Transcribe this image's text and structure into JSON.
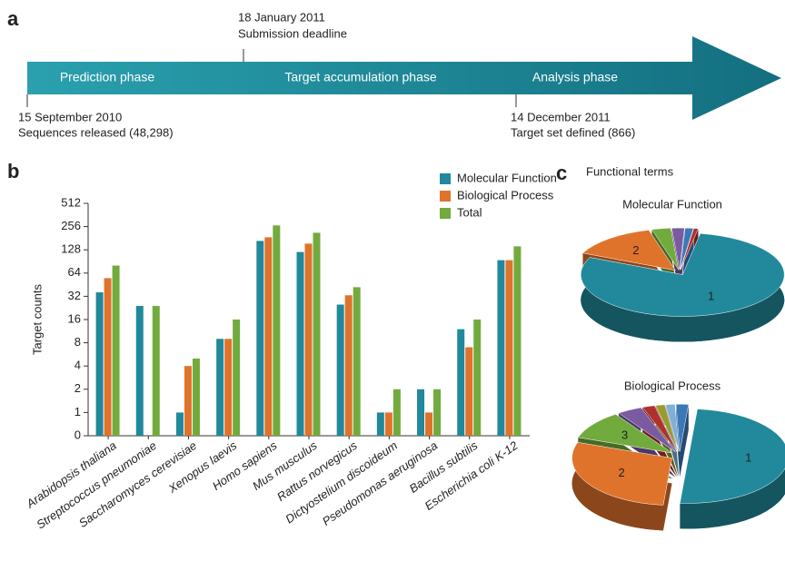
{
  "panel_labels": [
    "a",
    "b",
    "c"
  ],
  "timeline": {
    "phases": [
      "Prediction phase",
      "Target accumulation phase",
      "Analysis phase"
    ],
    "events": [
      {
        "date": "15 September 2010",
        "text": "Sequences released (48,298)"
      },
      {
        "date": "18 January 2011",
        "text": "Submission deadline"
      },
      {
        "date": "14 December 2011",
        "text": "Target set defined (866)"
      }
    ]
  },
  "chart_data": [
    {
      "type": "bar",
      "y_label": "Target counts",
      "categories": [
        "Arabidopsis thaliana",
        "Streptococcus pneumoniae",
        "Saccharomyces cerevisiae",
        "Xenopus laevis",
        "Homo sapiens",
        "Mus musculus",
        "Rattus norvegicus",
        "Dictyostelium discoideum",
        "Pseudomonas aeruginosa",
        "Bacillus subtilis",
        "Escherichia coli K-12"
      ],
      "series": [
        {
          "name": "Molecular Function",
          "color": "#21899b",
          "values": [
            36,
            24,
            1,
            9,
            167,
            120,
            25,
            1,
            2,
            12,
            94
          ]
        },
        {
          "name": "Biological Process",
          "color": "#e0732c",
          "values": [
            55,
            null,
            4,
            9,
            186,
            154,
            33,
            1,
            1,
            7,
            94
          ]
        },
        {
          "name": "Total",
          "color": "#72ab3d",
          "values": [
            80,
            24,
            5,
            16,
            265,
            213,
            42,
            2,
            2,
            16,
            142
          ]
        }
      ],
      "log_scale": true,
      "log_base": 2,
      "ylim": [
        0,
        512
      ],
      "yticks": [
        0,
        1,
        2,
        4,
        8,
        16,
        32,
        64,
        128,
        256,
        512
      ]
    },
    {
      "type": "pie",
      "title": "Functional terms",
      "subtitle": "Molecular Function",
      "values": [
        79,
        14,
        3,
        2,
        1.3,
        0.7
      ],
      "labels": [
        "1",
        "2",
        null,
        null,
        null,
        null
      ],
      "colors": [
        "#21899b",
        "#e0732c",
        "#72ab3d",
        "#7a5aa0",
        "#3b78b8",
        "#b03030"
      ]
    },
    {
      "type": "pie",
      "subtitle": "Biological Process",
      "values": [
        50,
        29,
        10,
        4,
        2,
        1.5,
        1.5,
        2
      ],
      "labels": [
        "1",
        "2",
        "3",
        null,
        null,
        null,
        null,
        null
      ],
      "colors": [
        "#21899b",
        "#e0732c",
        "#72ab3d",
        "#7a5aa0",
        "#b03030",
        "#9a9a30",
        "#7fb0d8",
        "#3b78b8"
      ]
    }
  ]
}
